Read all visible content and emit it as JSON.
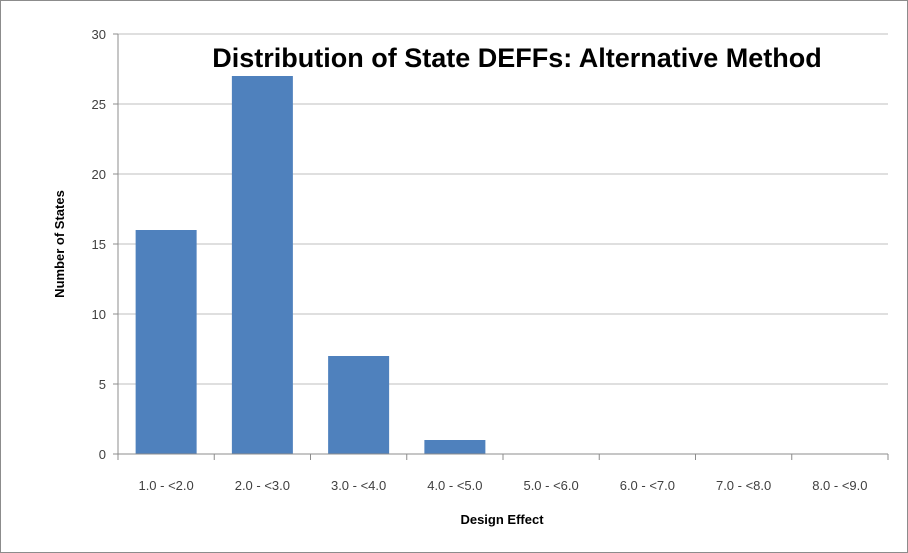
{
  "chart_data": {
    "type": "bar",
    "title": "Distribution of State DEFFs: Alternative Method",
    "xlabel": "Design Effect",
    "ylabel": "Number of States",
    "categories": [
      "1.0 - <2.0",
      "2.0 - <3.0",
      "3.0 - <4.0",
      "4.0 - <5.0",
      "5.0 - <6.0",
      "6.0 - <7.0",
      "7.0 - <8.0",
      "8.0 - <9.0"
    ],
    "values": [
      16,
      27,
      7,
      1,
      0,
      0,
      0,
      0
    ],
    "ylim": [
      0,
      30
    ],
    "yticks": [
      0,
      5,
      10,
      15,
      20,
      25,
      30
    ],
    "grid": true,
    "legend": "none",
    "bar_color": "#4F81BD",
    "grid_color": "#BFBFBF"
  }
}
